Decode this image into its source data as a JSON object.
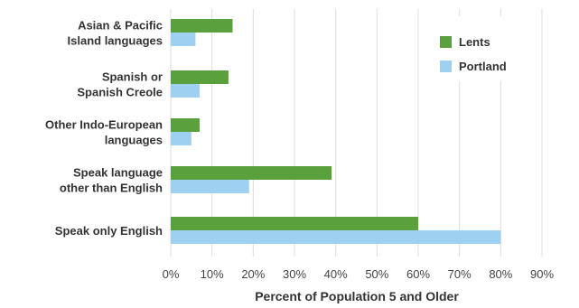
{
  "chart_data": {
    "type": "bar",
    "orientation": "horizontal",
    "categories": [
      [
        "Asian & Pacific",
        "Island languages"
      ],
      [
        "Spanish or",
        "Spanish Creole"
      ],
      [
        "Other Indo-European",
        "languages"
      ],
      [
        "Speak language",
        "other than English"
      ],
      [
        "Speak only English"
      ]
    ],
    "series": [
      {
        "name": "Lents",
        "values": [
          15,
          14,
          7,
          39,
          60
        ],
        "color": "#5aa03c"
      },
      {
        "name": "Portland",
        "values": [
          6,
          7,
          5,
          19,
          80
        ],
        "color": "#9ed0f2"
      }
    ],
    "xlim": [
      0,
      90
    ],
    "x_ticks": [
      0,
      10,
      20,
      30,
      40,
      50,
      60,
      70,
      80,
      90
    ],
    "tick_suffix": "%",
    "xlabel": "Percent of Population 5 and Older",
    "ylabel": "",
    "title": "",
    "grid": "vertical",
    "legend_position": "top-right"
  }
}
